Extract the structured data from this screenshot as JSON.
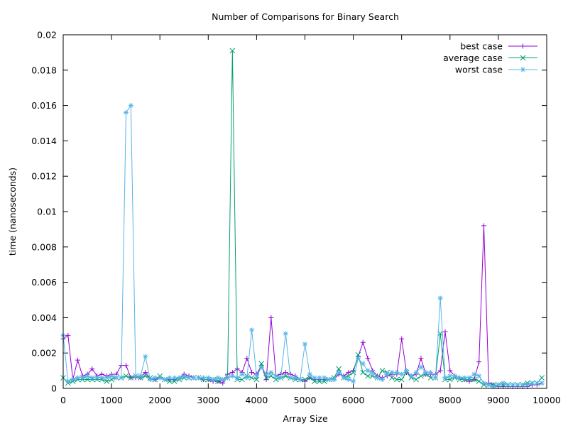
{
  "chart_data": {
    "type": "line",
    "title": "Number of Comparisons for Binary Search",
    "xlabel": "Array Size",
    "ylabel": "time (nanoseconds)",
    "xlim": [
      0,
      10000
    ],
    "ylim": [
      0,
      0.02
    ],
    "x_ticks": [
      "0",
      "1000",
      "2000",
      "3000",
      "4000",
      "5000",
      "6000",
      "7000",
      "8000",
      "9000",
      "10000"
    ],
    "y_ticks": [
      "0",
      "0.002",
      "0.004",
      "0.006",
      "0.008",
      "0.01",
      "0.012",
      "0.014",
      "0.016",
      "0.018",
      "0.02"
    ],
    "grid": false,
    "legend_position": "top-right",
    "x": [
      0,
      100,
      200,
      300,
      400,
      500,
      600,
      700,
      800,
      900,
      1000,
      1100,
      1200,
      1300,
      1400,
      1500,
      1600,
      1700,
      1800,
      1900,
      2000,
      2100,
      2200,
      2300,
      2400,
      2500,
      2600,
      2700,
      2800,
      2900,
      3000,
      3100,
      3200,
      3300,
      3400,
      3500,
      3600,
      3700,
      3800,
      3900,
      4000,
      4100,
      4200,
      4300,
      4400,
      4500,
      4600,
      4700,
      4800,
      4900,
      5000,
      5100,
      5200,
      5300,
      5400,
      5500,
      5600,
      5700,
      5800,
      5900,
      6000,
      6100,
      6200,
      6300,
      6400,
      6500,
      6600,
      6700,
      6800,
      6900,
      7000,
      7100,
      7200,
      7300,
      7400,
      7500,
      7600,
      7700,
      7800,
      7900,
      8000,
      8100,
      8200,
      8300,
      8400,
      8500,
      8600,
      8700,
      8800,
      8900,
      9000,
      9100,
      9200,
      9300,
      9400,
      9500,
      9600,
      9700,
      9800,
      9900
    ],
    "series": [
      {
        "name": "best case",
        "color": "#9400d3",
        "marker": "plus",
        "values": [
          0.0028,
          0.003,
          0.0005,
          0.0016,
          0.0007,
          0.0008,
          0.0011,
          0.0007,
          0.0008,
          0.0007,
          0.0008,
          0.0008,
          0.0013,
          0.0013,
          0.0006,
          0.0006,
          0.0006,
          0.0009,
          0.0005,
          0.0005,
          0.0006,
          0.0005,
          0.0005,
          0.0005,
          0.0006,
          0.0008,
          0.0007,
          0.0006,
          0.0006,
          0.0005,
          0.0005,
          0.0004,
          0.0004,
          0.0003,
          0.0008,
          0.0009,
          0.0011,
          0.0009,
          0.0017,
          0.0009,
          0.0008,
          0.0013,
          0.0005,
          0.004,
          0.0007,
          0.0008,
          0.0009,
          0.0008,
          0.0007,
          0.0005,
          0.0004,
          0.0006,
          0.0005,
          0.0005,
          0.0005,
          0.0005,
          0.0005,
          0.0008,
          0.0007,
          0.0009,
          0.001,
          0.0018,
          0.0026,
          0.0017,
          0.001,
          0.0007,
          0.0006,
          0.0007,
          0.0008,
          0.0008,
          0.0028,
          0.0009,
          0.0007,
          0.0008,
          0.0017,
          0.0008,
          0.0008,
          0.0008,
          0.001,
          0.0032,
          0.001,
          0.0007,
          0.0006,
          0.0005,
          0.0004,
          0.0005,
          0.0015,
          0.0092,
          0.0003,
          0.0002,
          0.0001,
          0.0001,
          0.0001,
          0.0001,
          0.0001,
          0.0001,
          0.0001,
          0.0002,
          0.0002,
          0.0003
        ]
      },
      {
        "name": "average case",
        "color": "#009e73",
        "marker": "cross",
        "values": [
          0.0006,
          0.0003,
          0.0004,
          0.0005,
          0.0005,
          0.0005,
          0.0005,
          0.0005,
          0.0005,
          0.0004,
          0.0005,
          0.0006,
          0.0006,
          0.0007,
          0.0006,
          0.0007,
          0.0006,
          0.0007,
          0.0006,
          0.0005,
          0.0007,
          0.0005,
          0.0004,
          0.0004,
          0.0005,
          0.0006,
          0.0006,
          0.0006,
          0.0006,
          0.0005,
          0.0005,
          0.0005,
          0.0004,
          0.0005,
          0.0006,
          0.0191,
          0.0005,
          0.0005,
          0.0007,
          0.0006,
          0.0005,
          0.0014,
          0.0006,
          0.0007,
          0.0005,
          0.0006,
          0.0007,
          0.0006,
          0.0005,
          0.0005,
          0.0005,
          0.0006,
          0.0004,
          0.0004,
          0.0004,
          0.0005,
          0.0006,
          0.0011,
          0.0006,
          0.0007,
          0.0009,
          0.0019,
          0.0009,
          0.0007,
          0.0007,
          0.0006,
          0.001,
          0.0009,
          0.0006,
          0.0005,
          0.0005,
          0.0009,
          0.0006,
          0.0005,
          0.0007,
          0.0008,
          0.0006,
          0.0006,
          0.0031,
          0.0005,
          0.0005,
          0.0006,
          0.0005,
          0.0005,
          0.0005,
          0.0005,
          0.0004,
          0.0002,
          0.0002,
          0.0002,
          0.0002,
          0.0002,
          0.0002,
          0.0002,
          0.0002,
          0.0002,
          0.0003,
          0.0003,
          0.0003,
          0.0006
        ]
      },
      {
        "name": "worst case",
        "color": "#56b4e9",
        "marker": "star",
        "values": [
          0.003,
          0.0004,
          0.0005,
          0.0006,
          0.0006,
          0.0007,
          0.0006,
          0.0006,
          0.0006,
          0.0006,
          0.0007,
          0.0006,
          0.0006,
          0.0156,
          0.016,
          0.0007,
          0.0007,
          0.0018,
          0.0005,
          0.0006,
          0.0006,
          0.0005,
          0.0006,
          0.0006,
          0.0006,
          0.0007,
          0.0006,
          0.0006,
          0.0006,
          0.0006,
          0.0006,
          0.0005,
          0.0006,
          0.0005,
          0.0006,
          0.0007,
          0.0006,
          0.0008,
          0.0006,
          0.0033,
          0.0007,
          0.0012,
          0.0008,
          0.0009,
          0.0007,
          0.0006,
          0.0031,
          0.0006,
          0.0006,
          0.0005,
          0.0025,
          0.0008,
          0.0006,
          0.0006,
          0.0006,
          0.0005,
          0.0005,
          0.0009,
          0.0006,
          0.0005,
          0.0004,
          0.0017,
          0.0014,
          0.001,
          0.0009,
          0.0006,
          0.0005,
          0.0008,
          0.0009,
          0.0009,
          0.0008,
          0.001,
          0.0007,
          0.0009,
          0.0012,
          0.0009,
          0.0009,
          0.0006,
          0.0051,
          0.0006,
          0.0007,
          0.0007,
          0.0006,
          0.0006,
          0.0006,
          0.0008,
          0.0007,
          0.0003,
          0.0002,
          0.0001,
          0.0002,
          0.0003,
          0.0002,
          0.0002,
          0.0002,
          0.0002,
          0.0002,
          0.0003,
          0.0003,
          0.0003
        ]
      }
    ]
  }
}
